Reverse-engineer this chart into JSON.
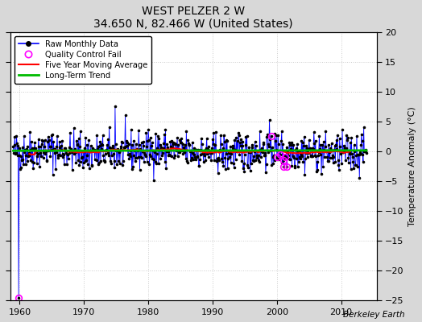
{
  "title": "WEST PELZER 2 W",
  "subtitle": "34.650 N, 82.466 W (United States)",
  "ylabel": "Temperature Anomaly (°C)",
  "watermark": "Berkeley Earth",
  "xlim": [
    1958.5,
    2015.5
  ],
  "ylim": [
    -25,
    20
  ],
  "yticks": [
    -25,
    -20,
    -15,
    -10,
    -5,
    0,
    5,
    10,
    15,
    20
  ],
  "xticks": [
    1960,
    1970,
    1980,
    1990,
    2000,
    2010
  ],
  "fig_bg_color": "#d8d8d8",
  "ax_bg_color": "#ffffff",
  "grid_color": "#cccccc",
  "line_color": "#0000ff",
  "marker_color": "#000000",
  "ma_color": "#ff0000",
  "trend_color": "#00bb00",
  "qc_color": "#ff00ff",
  "seed": 42,
  "n_months": 660,
  "start_year": 1959.0,
  "spike_index": 10,
  "spike_value": -24.5,
  "qc_indices": [
    10,
    481,
    492,
    499,
    504,
    505,
    508,
    511
  ],
  "qc_values": [
    -24.5,
    2.5,
    -1.0,
    -0.5,
    -1.5,
    -2.5,
    -1.0,
    -2.5
  ]
}
